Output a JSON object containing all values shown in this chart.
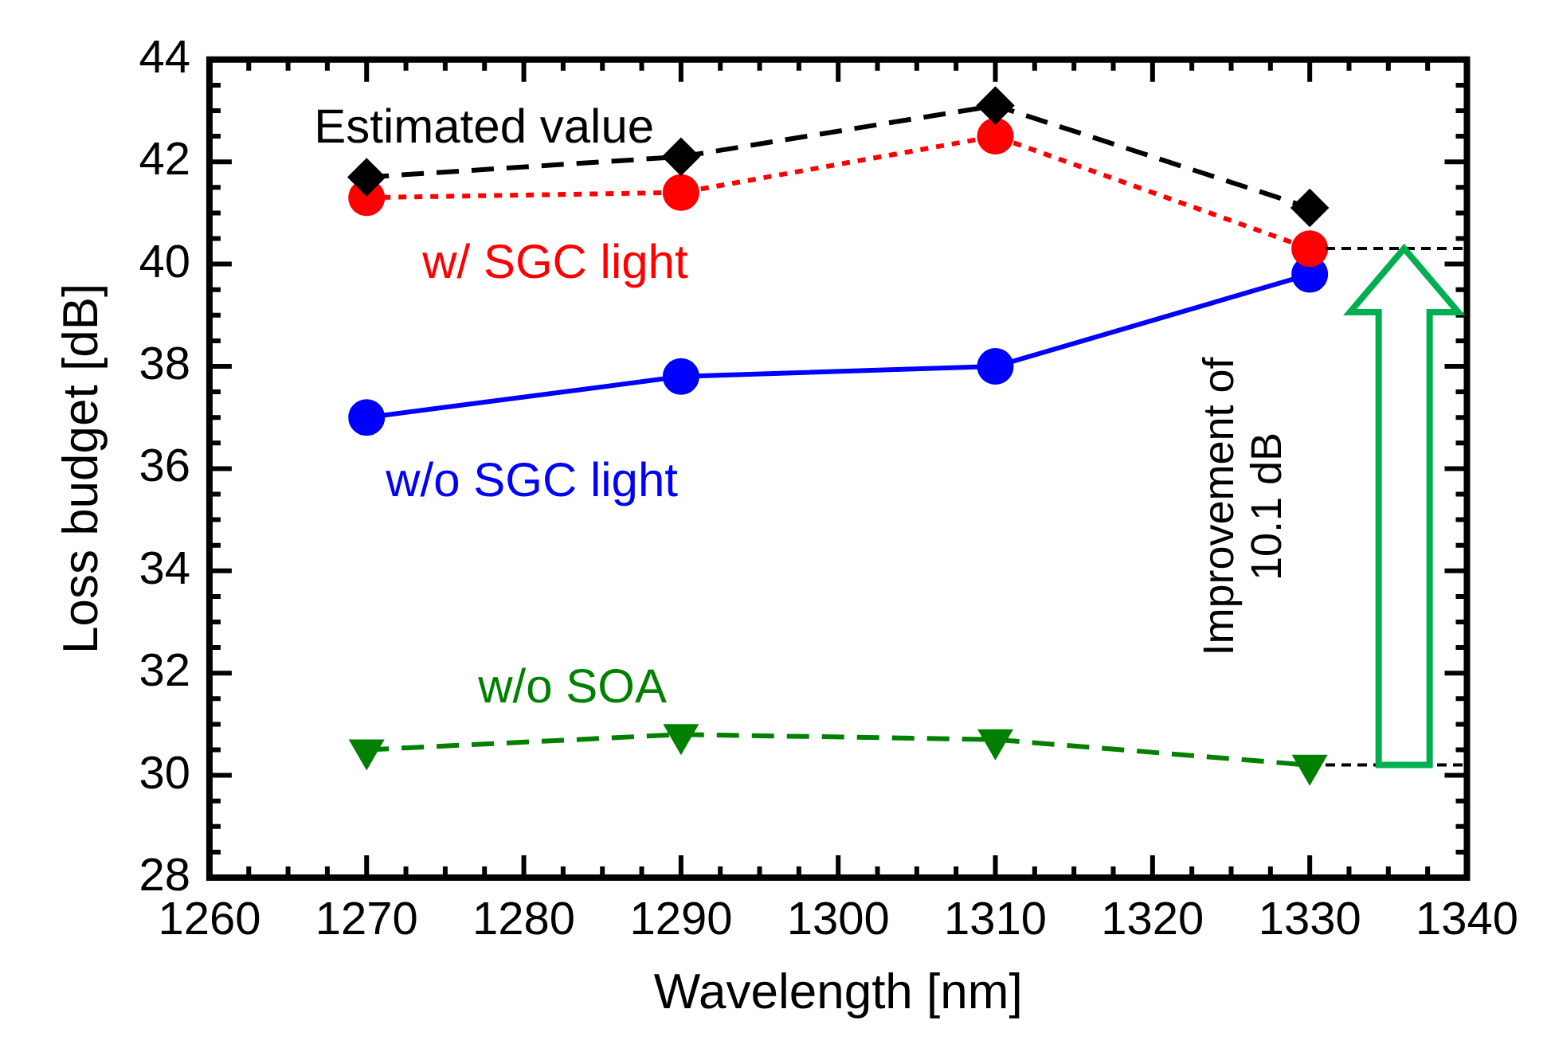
{
  "chart_data": {
    "type": "line",
    "xlabel": "Wavelength [nm]",
    "ylabel": "Loss budget [dB]",
    "x": [
      1270,
      1290,
      1310,
      1330
    ],
    "series": [
      {
        "name": "Estimated value",
        "color": "#000000",
        "values": [
          41.7,
          42.1,
          43.1,
          41.1
        ],
        "marker": "diamond",
        "line_style": "dashed"
      },
      {
        "name": "w/ SGC light",
        "color": "#ff0000",
        "values": [
          41.3,
          41.4,
          42.5,
          40.3
        ],
        "marker": "circle",
        "line_style": "dotted"
      },
      {
        "name": "w/o SGC light",
        "color": "#0000ff",
        "values": [
          37.0,
          37.8,
          38.0,
          39.8
        ],
        "marker": "circle",
        "line_style": "solid"
      },
      {
        "name": "w/o SOA",
        "color": "#008000",
        "values": [
          30.5,
          30.8,
          30.7,
          30.2
        ],
        "marker": "triangle",
        "line_style": "dashed"
      }
    ],
    "xlim": [
      1260,
      1340
    ],
    "xticks": [
      1260,
      1270,
      1280,
      1290,
      1300,
      1310,
      1320,
      1330,
      1340
    ],
    "ylim": [
      28,
      44
    ],
    "yticks": [
      28,
      30,
      32,
      34,
      36,
      38,
      40,
      42,
      44
    ],
    "grid": false,
    "legend": "top left",
    "annotations": [
      "Improvement of\n10.1 dB"
    ]
  }
}
